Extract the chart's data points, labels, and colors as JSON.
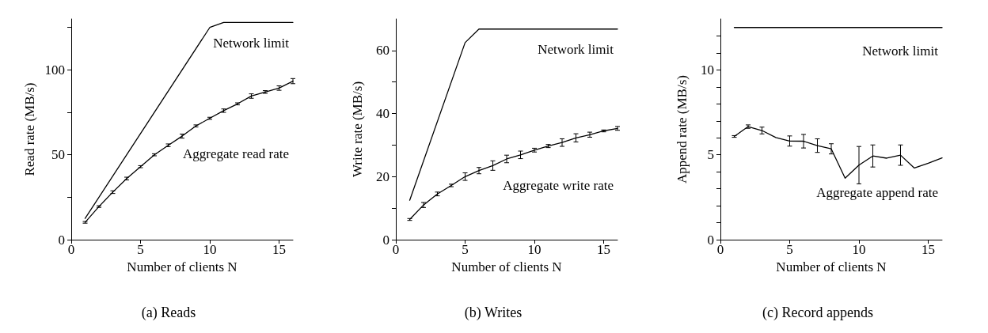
{
  "chart_data": [
    {
      "type": "line",
      "title": "(a) Reads",
      "xlabel": "Number of clients N",
      "ylabel": "Read rate (MB/s)",
      "xlim": [
        0,
        16
      ],
      "ylim": [
        0,
        130
      ],
      "xticks": [
        0,
        5,
        10,
        15
      ],
      "yticks": [
        0,
        {
          "value": 25,
          "label": null
        },
        50,
        {
          "value": 75,
          "label": null
        },
        100,
        {
          "value": 125,
          "label": null
        }
      ],
      "grid": false,
      "legend": false,
      "marker": "none",
      "line_style": "solid",
      "series": [
        {
          "name": "Network limit",
          "color": "#000000",
          "x": [
            1,
            10,
            11,
            16
          ],
          "values": [
            12.5,
            125,
            128,
            128
          ]
        },
        {
          "name": "Aggregate read rate",
          "color": "#000000",
          "x": [
            1,
            2,
            3,
            4,
            5,
            6,
            7,
            8,
            9,
            10,
            11,
            12,
            13,
            14,
            15,
            16
          ],
          "values": [
            10.2,
            19.5,
            28,
            36,
            43,
            50,
            55.6,
            61,
            67,
            71.5,
            76,
            80,
            84.6,
            87,
            89.3,
            93.4
          ],
          "errors": [
            0.5,
            0.5,
            0.8,
            0.8,
            0.6,
            0.6,
            0.8,
            1.2,
            0.6,
            0.6,
            1,
            0.6,
            1.3,
            0.8,
            1.3,
            1.5
          ]
        }
      ]
    },
    {
      "type": "line",
      "title": "(b) Writes",
      "xlabel": "Number of clients N",
      "ylabel": "Write rate (MB/s)",
      "xlim": [
        0,
        16
      ],
      "ylim": [
        0,
        70
      ],
      "xticks": [
        0,
        5,
        10,
        15
      ],
      "yticks": [
        0,
        {
          "value": 10,
          "label": null
        },
        20,
        {
          "value": 30,
          "label": null
        },
        40,
        {
          "value": 50,
          "label": null
        },
        60
      ],
      "grid": false,
      "legend": false,
      "marker": "none",
      "line_style": "solid",
      "series": [
        {
          "name": "Network limit",
          "color": "#000000",
          "x": [
            1,
            5,
            6,
            16
          ],
          "values": [
            12.5,
            62.5,
            66.8,
            66.8
          ]
        },
        {
          "name": "Aggregate write rate",
          "color": "#000000",
          "x": [
            1,
            2,
            3,
            4,
            5,
            6,
            7,
            8,
            9,
            10,
            11,
            12,
            13,
            14,
            15,
            16
          ],
          "values": [
            6.4,
            11,
            14.5,
            17.2,
            20,
            21.9,
            23.5,
            25.6,
            26.9,
            28.4,
            29.7,
            30.8,
            32.3,
            33.3,
            34.5,
            35.3
          ],
          "errors": [
            0.3,
            0.8,
            0.6,
            0.4,
            1.2,
            1,
            1.5,
            1.2,
            1.2,
            0.6,
            0.5,
            1.2,
            1.3,
            0.8,
            0.3,
            0.6
          ]
        }
      ]
    },
    {
      "type": "line",
      "title": "(c) Record appends",
      "xlabel": "Number of clients N",
      "ylabel": "Append rate (MB/s)",
      "xlim": [
        0,
        16
      ],
      "ylim": [
        0,
        13
      ],
      "xticks": [
        0,
        5,
        10,
        15
      ],
      "yticks": [
        0,
        {
          "value": 1,
          "label": null
        },
        {
          "value": 2,
          "label": null
        },
        {
          "value": 3,
          "label": null
        },
        {
          "value": 4,
          "label": null
        },
        5,
        {
          "value": 6,
          "label": null
        },
        {
          "value": 7,
          "label": null
        },
        {
          "value": 8,
          "label": null
        },
        {
          "value": 9,
          "label": null
        },
        10,
        {
          "value": 11,
          "label": null
        },
        {
          "value": 12,
          "label": null
        }
      ],
      "grid": false,
      "legend": false,
      "marker": "none",
      "line_style": "solid",
      "series": [
        {
          "name": "Network limit",
          "color": "#000000",
          "x": [
            1,
            16
          ],
          "values": [
            12.5,
            12.5
          ]
        },
        {
          "name": "Aggregate append rate",
          "color": "#000000",
          "x": [
            1,
            2,
            3,
            4,
            5,
            6,
            7,
            8,
            9,
            10,
            11,
            12,
            13,
            14,
            15,
            16
          ],
          "values": [
            6.08,
            6.66,
            6.43,
            6.02,
            5.81,
            5.8,
            5.54,
            5.35,
            3.62,
            4.39,
            4.93,
            4.8,
            4.98,
            4.22,
            4.5,
            4.82
          ],
          "errors": [
            0.05,
            0.1,
            0.2,
            null,
            0.3,
            0.4,
            0.4,
            0.3,
            null,
            1.1,
            0.65,
            null,
            0.6,
            null,
            null,
            null
          ]
        }
      ]
    }
  ]
}
